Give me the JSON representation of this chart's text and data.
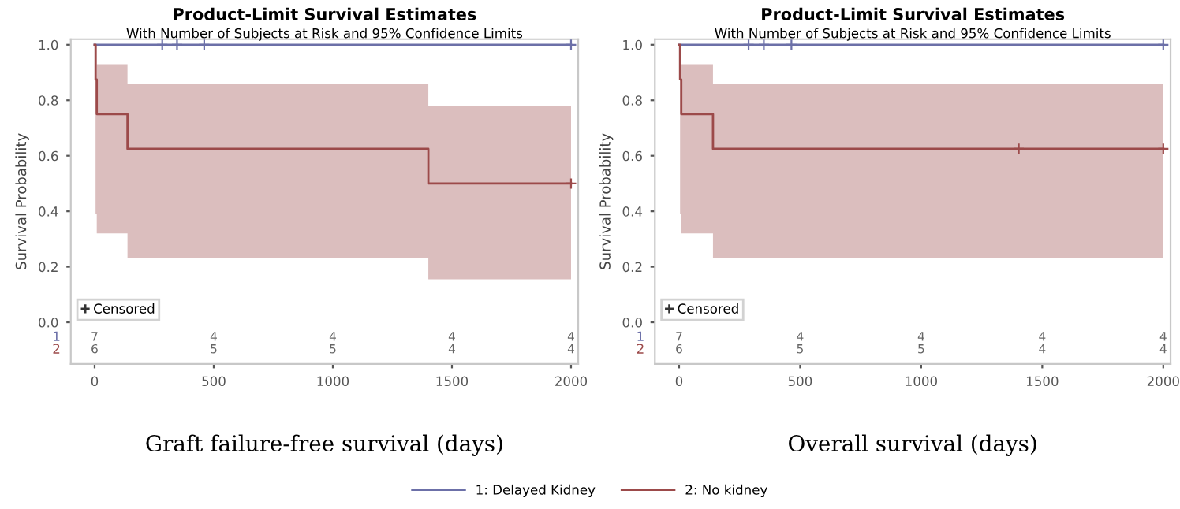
{
  "chart_data": [
    {
      "type": "step",
      "title": "Product-Limit Survival Estimates",
      "subtitle": "With Number of Subjects at Risk and 95% Confidence Limits",
      "xlabel": "Graft failure-free survival (days)",
      "ylabel": "Survival Probability",
      "xlim": [
        -100,
        2030
      ],
      "xticks": [
        0,
        500,
        1000,
        1500,
        2000
      ],
      "ylim": [
        -0.15,
        1.02
      ],
      "yticks": [
        {
          "value": 0.0,
          "label": "0.0"
        },
        {
          "value": 0.2,
          "label": "0.2"
        },
        {
          "value": 0.4,
          "label": "0.4"
        },
        {
          "value": 0.6,
          "label": "0.6"
        },
        {
          "value": 0.8,
          "label": "0.8"
        },
        {
          "value": 1.0,
          "label": "1.0"
        }
      ],
      "grid": false,
      "legend": "bottom",
      "marker": "none",
      "line_style": "solid",
      "series": [
        {
          "name": "1: Delayed Kidney",
          "color": "#6c70a8",
          "x": [
            0,
            2000
          ],
          "values": [
            1.0,
            1.0
          ]
        },
        {
          "name": "2: No kidney",
          "color": "#9c4a4a",
          "x": [
            0,
            4,
            9,
            138,
            1401,
            2000
          ],
          "values": [
            1.0,
            0.875,
            0.75,
            0.625,
            0.5,
            0.5
          ],
          "lower": [
            1.0,
            0.39,
            0.32,
            0.23,
            0.155,
            0.155
          ],
          "upper": [
            1.0,
            1.0,
            0.93,
            0.86,
            0.78,
            0.78
          ]
        },
        {
          "type": "scatter",
          "marker": "cross",
          "color": "#6c70a8",
          "x": [
            284,
            346,
            460,
            2000
          ],
          "values": [
            1.0,
            1.0,
            1.0,
            1.0
          ]
        },
        {
          "type": "scatter",
          "marker": "cross",
          "color": "#9c4a4a",
          "x": [
            2000
          ],
          "values": [
            0.5
          ]
        }
      ],
      "annotations": [
        "Censored",
        "1",
        "7",
        "4",
        "4",
        "4",
        "4",
        "2",
        "6",
        "5",
        "5",
        "4",
        "4"
      ]
    },
    {
      "type": "step",
      "title": "Product-Limit Survival Estimates",
      "subtitle": "With Number of Subjects at Risk and 95% Confidence Limits",
      "xlabel": "Overall survival (days)",
      "ylabel": "Survival Probability",
      "xlim": [
        -100,
        2030
      ],
      "xticks": [
        0,
        500,
        1000,
        1500,
        2000
      ],
      "ylim": [
        -0.15,
        1.02
      ],
      "yticks": [
        {
          "value": 0.0,
          "label": "0.0"
        },
        {
          "value": 0.2,
          "label": "0.2"
        },
        {
          "value": 0.4,
          "label": "0.4"
        },
        {
          "value": 0.6,
          "label": "0.6"
        },
        {
          "value": 0.8,
          "label": "0.8"
        },
        {
          "value": 1.0,
          "label": "1.0"
        }
      ],
      "grid": false,
      "marker": "none",
      "line_style": "solid",
      "series": [
        {
          "color": "#6c70a8",
          "x": [
            0,
            2000
          ],
          "values": [
            1.0,
            1.0
          ]
        },
        {
          "color": "#9c4a4a",
          "x": [
            0,
            4,
            9,
            140,
            2000
          ],
          "values": [
            1.0,
            0.875,
            0.75,
            0.625,
            0.625
          ],
          "lower": [
            1.0,
            0.39,
            0.32,
            0.23,
            0.23
          ],
          "upper": [
            1.0,
            1.0,
            0.93,
            0.86,
            0.86
          ]
        },
        {
          "type": "scatter",
          "marker": "cross",
          "color": "#6c70a8",
          "x": [
            287,
            350,
            464,
            2000
          ],
          "values": [
            1.0,
            1.0,
            1.0,
            1.0
          ]
        },
        {
          "type": "scatter",
          "marker": "cross",
          "color": "#9c4a4a",
          "x": [
            1403,
            2000
          ],
          "values": [
            0.625,
            0.625
          ]
        }
      ],
      "annotations": [
        "Censored",
        "1",
        "7",
        "4",
        "4",
        "4",
        "4",
        "2",
        "6",
        "5",
        "5",
        "4",
        "4"
      ]
    }
  ]
}
